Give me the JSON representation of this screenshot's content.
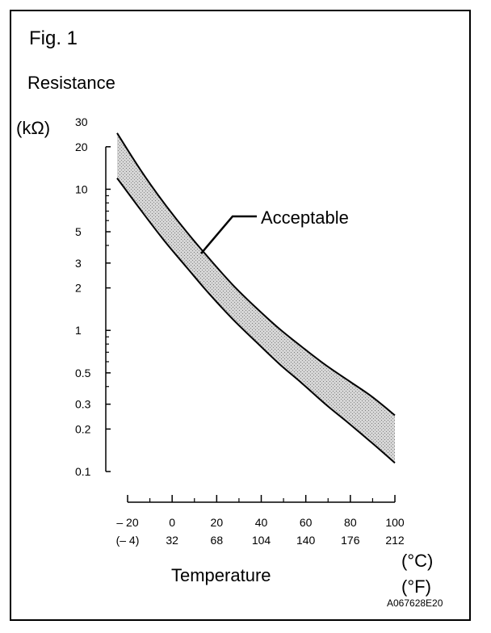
{
  "figure": {
    "label": "Fig. 1",
    "code": "A067628E20"
  },
  "chart_data": {
    "type": "area",
    "title": "",
    "ylabel": "Resistance",
    "yunit": "(kΩ)",
    "xlabel": "Temperature",
    "xunit_c": "(°C)",
    "xunit_f": "(°F)",
    "yscale": "log",
    "ylim": [
      0.1,
      30
    ],
    "xlim": [
      -20,
      100
    ],
    "y_tick_labels": [
      {
        "value": 30,
        "label": "30"
      },
      {
        "value": 20,
        "label": "20"
      },
      {
        "value": 10,
        "label": "10"
      },
      {
        "value": 5,
        "label": "5"
      },
      {
        "value": 3,
        "label": "3"
      },
      {
        "value": 2,
        "label": "2"
      },
      {
        "value": 1,
        "label": "1"
      },
      {
        "value": 0.5,
        "label": "0.5"
      },
      {
        "value": 0.3,
        "label": "0.3"
      },
      {
        "value": 0.2,
        "label": "0.2"
      },
      {
        "value": 0.1,
        "label": "0.1"
      }
    ],
    "y_minor_ticks": [
      9,
      8,
      7,
      6,
      4,
      0.9,
      0.8,
      0.7,
      0.6,
      0.4
    ],
    "x_ticks": [
      {
        "c": -20,
        "c_label": "– 20",
        "f_label": "(– 4)"
      },
      {
        "c": 0,
        "c_label": "0",
        "f_label": "32"
      },
      {
        "c": 20,
        "c_label": "20",
        "f_label": "68"
      },
      {
        "c": 40,
        "c_label": "40",
        "f_label": "104"
      },
      {
        "c": 60,
        "c_label": "60",
        "f_label": "140"
      },
      {
        "c": 80,
        "c_label": "80",
        "f_label": "176"
      },
      {
        "c": 100,
        "c_label": "100",
        "f_label": "212"
      }
    ],
    "x_minor_ticks": [
      -10,
      10,
      30,
      50,
      70,
      90
    ],
    "band": {
      "name": "Acceptable",
      "x": [
        -20,
        -10,
        0,
        10,
        20,
        30,
        40,
        50,
        60,
        70,
        80,
        90,
        100
      ],
      "upper": [
        25,
        13.8,
        8.1,
        5.0,
        3.2,
        2.1,
        1.45,
        1.03,
        0.76,
        0.57,
        0.44,
        0.34,
        0.25
      ],
      "lower": [
        12,
        7.2,
        4.4,
        2.8,
        1.8,
        1.2,
        0.83,
        0.58,
        0.42,
        0.3,
        0.22,
        0.16,
        0.115
      ]
    },
    "annotation": "Acceptable",
    "grid": false,
    "fill": "#c8c8c8"
  }
}
